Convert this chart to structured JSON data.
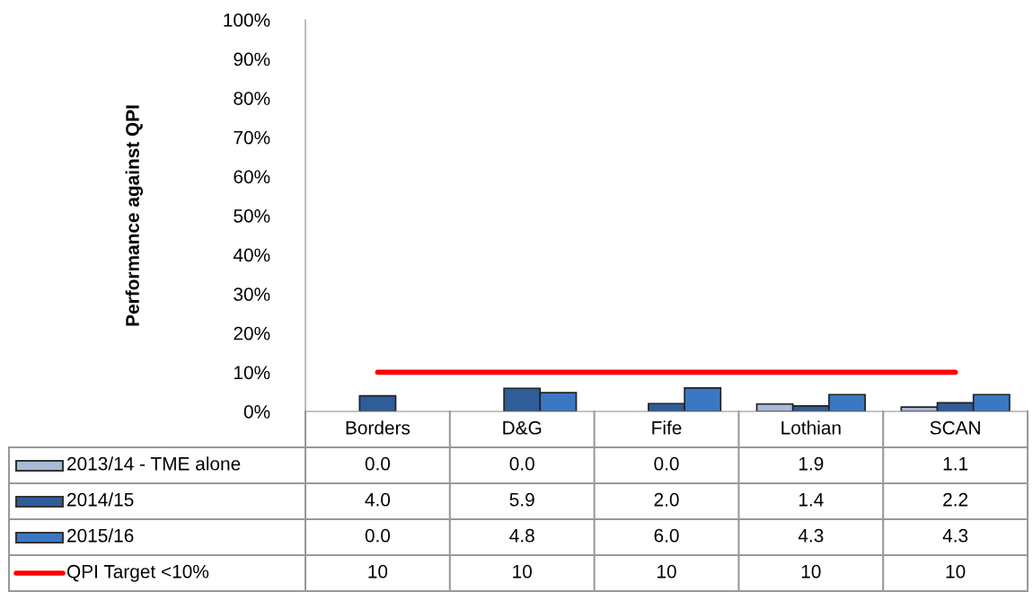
{
  "chart_data": {
    "type": "bar",
    "ylabel": "Performance against QPI",
    "categories": [
      "Borders",
      "D&G",
      "Fife",
      "Lothian",
      "SCAN"
    ],
    "series": [
      {
        "name": "2013/14 - TME alone",
        "color": "#a9b9d6",
        "values": [
          0.0,
          0.0,
          0.0,
          1.9,
          1.1
        ],
        "value_labels": [
          "0.0",
          "0.0",
          "0.0",
          "1.9",
          "1.1"
        ]
      },
      {
        "name": "2014/15",
        "color": "#2e5d9a",
        "values": [
          4.0,
          5.9,
          2.0,
          1.4,
          2.2
        ],
        "value_labels": [
          "4.0",
          "5.9",
          "2.0",
          "1.4",
          "2.2"
        ]
      },
      {
        "name": "2015/16",
        "color": "#3a78c6",
        "values": [
          0.0,
          4.8,
          6.0,
          4.3,
          4.3
        ],
        "value_labels": [
          "0.0",
          "4.8",
          "6.0",
          "4.3",
          "4.3"
        ]
      },
      {
        "name": "QPI Target <10%",
        "type": "line",
        "color": "#ff0000",
        "values": [
          10,
          10,
          10,
          10,
          10
        ],
        "value_labels": [
          "10",
          "10",
          "10",
          "10",
          "10"
        ]
      }
    ],
    "ylim": [
      0,
      100
    ],
    "yticks": [
      {
        "value": 0,
        "label": "0%"
      },
      {
        "value": 10,
        "label": "10%"
      },
      {
        "value": 20,
        "label": "20%"
      },
      {
        "value": 30,
        "label": "30%"
      },
      {
        "value": 40,
        "label": "40%"
      },
      {
        "value": 50,
        "label": "50%"
      },
      {
        "value": 60,
        "label": "60%"
      },
      {
        "value": 70,
        "label": "70%"
      },
      {
        "value": 80,
        "label": "80%"
      },
      {
        "value": 90,
        "label": "90%"
      },
      {
        "value": 100,
        "label": "100%"
      }
    ],
    "grid": false,
    "legend": "bottom",
    "line_style": "solid"
  }
}
